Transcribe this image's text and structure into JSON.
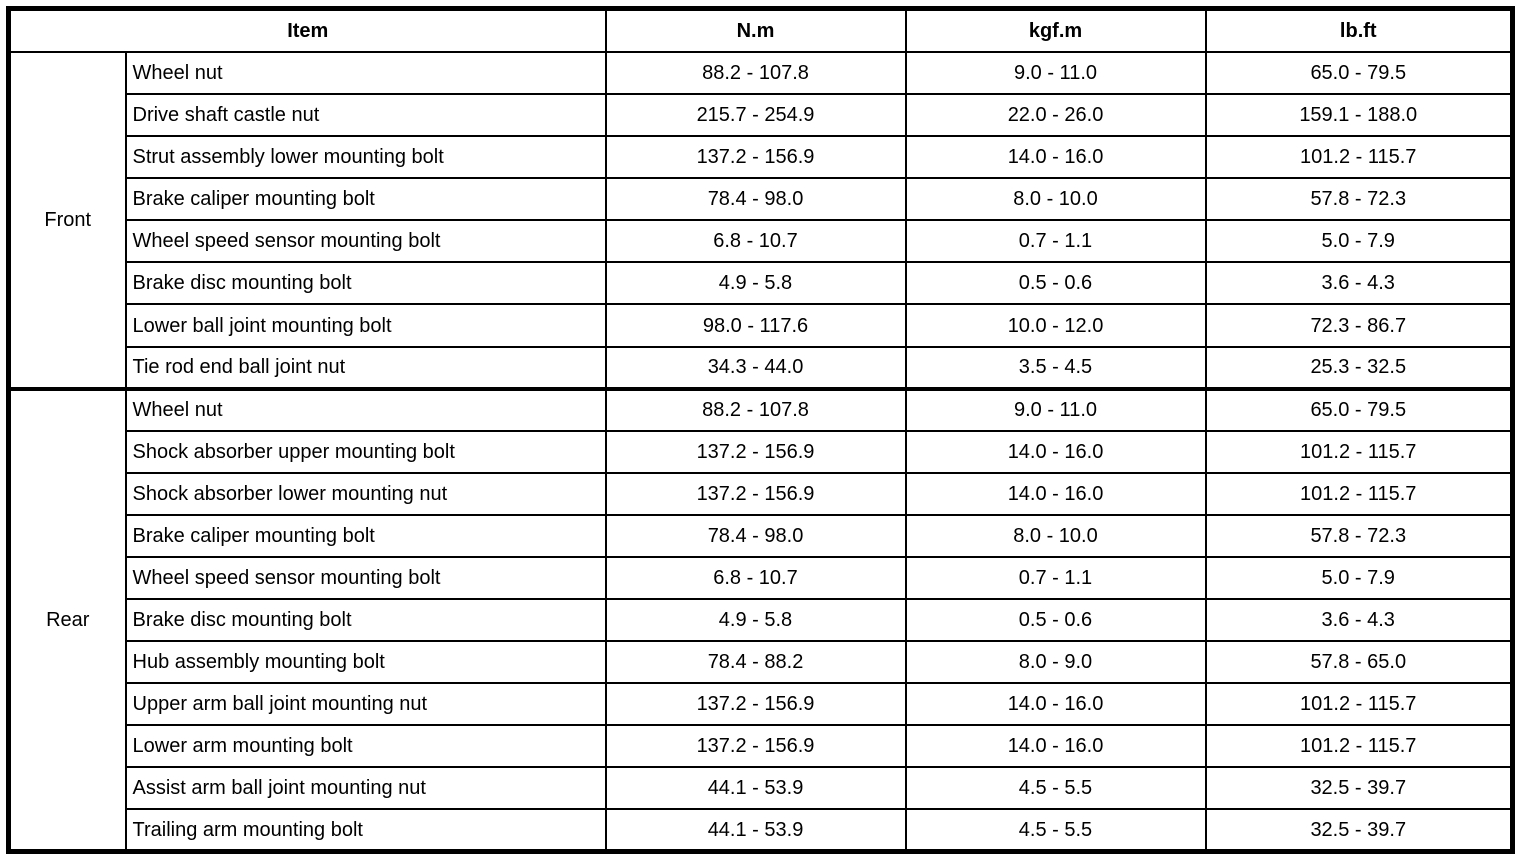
{
  "table": {
    "headers": [
      "Item",
      "N.m",
      "kgf.m",
      "lb.ft"
    ],
    "groups": [
      {
        "label": "Front",
        "rows": [
          [
            "Wheel nut",
            "88.2 - 107.8",
            "9.0 - 11.0",
            "65.0 - 79.5"
          ],
          [
            "Drive shaft castle nut",
            "215.7 - 254.9",
            "22.0 - 26.0",
            "159.1 - 188.0"
          ],
          [
            "Strut assembly lower mounting bolt",
            "137.2 - 156.9",
            "14.0 - 16.0",
            "101.2 - 115.7"
          ],
          [
            "Brake caliper mounting bolt",
            "78.4 - 98.0",
            "8.0 - 10.0",
            "57.8 - 72.3"
          ],
          [
            "Wheel speed sensor mounting bolt",
            "6.8 - 10.7",
            "0.7 - 1.1",
            "5.0 - 7.9"
          ],
          [
            "Brake disc mounting bolt",
            "4.9 - 5.8",
            "0.5 - 0.6",
            "3.6 - 4.3"
          ],
          [
            "Lower ball joint mounting bolt",
            "98.0 - 117.6",
            "10.0 - 12.0",
            "72.3 - 86.7"
          ],
          [
            "Tie rod end ball joint nut",
            "34.3 - 44.0",
            "3.5 - 4.5",
            "25.3 - 32.5"
          ]
        ]
      },
      {
        "label": "Rear",
        "rows": [
          [
            "Wheel nut",
            "88.2 - 107.8",
            "9.0 - 11.0",
            "65.0 - 79.5"
          ],
          [
            "Shock absorber upper mounting bolt",
            "137.2 - 156.9",
            "14.0 - 16.0",
            "101.2 - 115.7"
          ],
          [
            "Shock absorber lower mounting nut",
            "137.2 - 156.9",
            "14.0 - 16.0",
            "101.2 - 115.7"
          ],
          [
            "Brake caliper mounting bolt",
            "78.4 - 98.0",
            "8.0 - 10.0",
            "57.8 - 72.3"
          ],
          [
            "Wheel speed sensor mounting bolt",
            "6.8 - 10.7",
            "0.7 - 1.1",
            "5.0 - 7.9"
          ],
          [
            "Brake disc mounting bolt",
            "4.9 - 5.8",
            "0.5 - 0.6",
            "3.6 - 4.3"
          ],
          [
            "Hub assembly mounting bolt",
            "78.4 - 88.2",
            "8.0 - 9.0",
            "57.8 - 65.0"
          ],
          [
            "Upper arm ball joint mounting nut",
            "137.2 - 156.9",
            "14.0 - 16.0",
            "101.2 - 115.7"
          ],
          [
            "Lower arm mounting bolt",
            "137.2 - 156.9",
            "14.0 - 16.0",
            "101.2 - 115.7"
          ],
          [
            "Assist arm ball joint mounting nut",
            "44.1 - 53.9",
            "4.5 - 5.5",
            "32.5 - 39.7"
          ],
          [
            "Trailing arm mounting bolt",
            "44.1 - 53.9",
            "4.5 - 5.5",
            "32.5 - 39.7"
          ]
        ]
      }
    ]
  }
}
